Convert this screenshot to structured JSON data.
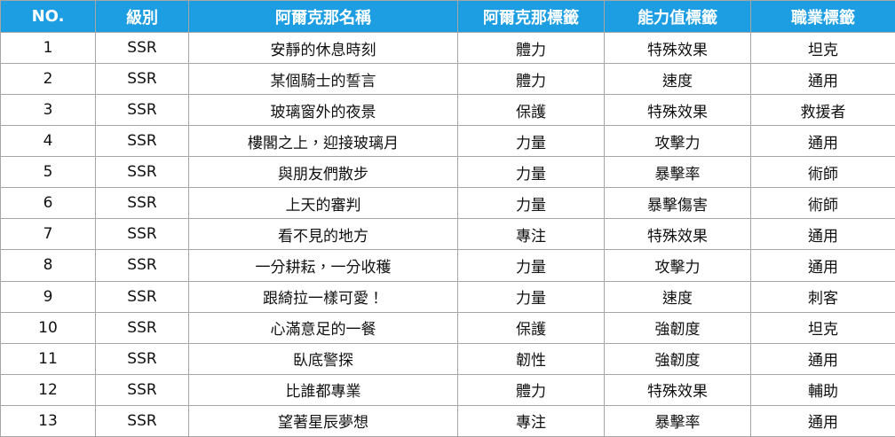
{
  "table": {
    "header": [
      "NO.",
      "級別",
      "阿爾克那名稱",
      "阿爾克那標籤",
      "能力值標籤",
      "職業標籤"
    ],
    "rows": [
      [
        "1",
        "SSR",
        "安靜的休息時刻",
        "體力",
        "特殊效果",
        "坦克"
      ],
      [
        "2",
        "SSR",
        "某個騎士的誓言",
        "體力",
        "速度",
        "通用"
      ],
      [
        "3",
        "SSR",
        "玻璃窗外的夜景",
        "保護",
        "特殊效果",
        "救援者"
      ],
      [
        "4",
        "SSR",
        "樓閣之上，迎接玻璃月",
        "力量",
        "攻擊力",
        "通用"
      ],
      [
        "5",
        "SSR",
        "與朋友們散步",
        "力量",
        "暴擊率",
        "術師"
      ],
      [
        "6",
        "SSR",
        "上天的審判",
        "力量",
        "暴擊傷害",
        "術師"
      ],
      [
        "7",
        "SSR",
        "看不見的地方",
        "專注",
        "特殊效果",
        "通用"
      ],
      [
        "8",
        "SSR",
        "一分耕耘，一分收穫",
        "力量",
        "攻擊力",
        "通用"
      ],
      [
        "9",
        "SSR",
        "跟綺拉一樣可愛！",
        "力量",
        "速度",
        "刺客"
      ],
      [
        "10",
        "SSR",
        "心滿意足的一餐",
        "保護",
        "強韌度",
        "坦克"
      ],
      [
        "11",
        "SSR",
        "臥底警探",
        "韌性",
        "強韌度",
        "通用"
      ],
      [
        "12",
        "SSR",
        "比誰都專業",
        "體力",
        "特殊效果",
        "輔助"
      ],
      [
        "13",
        "SSR",
        "望著星辰夢想",
        "專注",
        "暴擊率",
        "通用"
      ]
    ]
  }
}
